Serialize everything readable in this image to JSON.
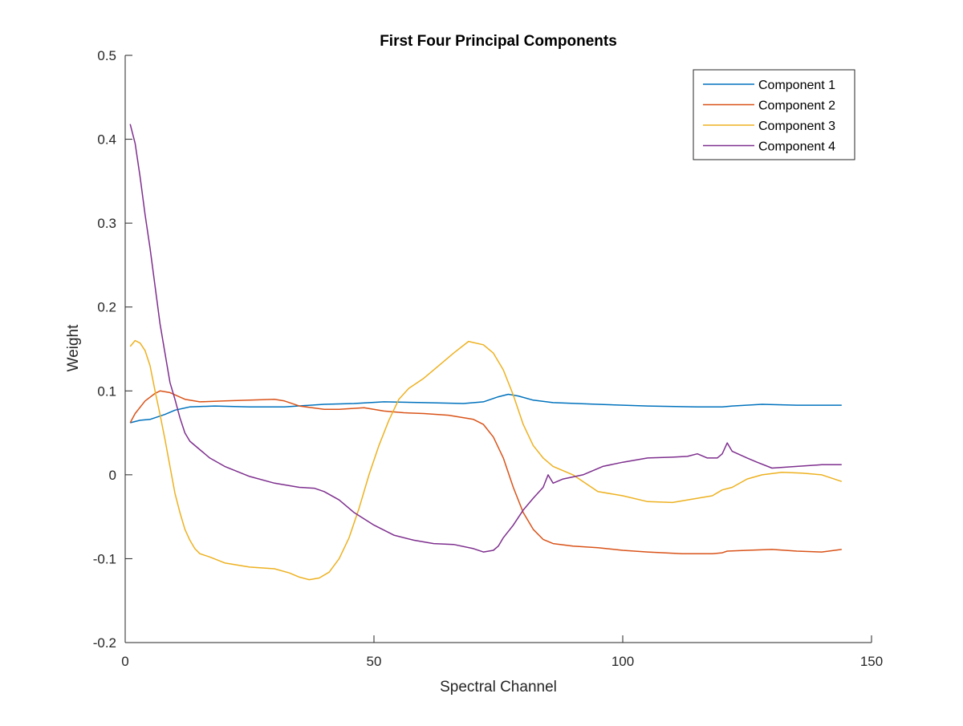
{
  "chart_data": {
    "type": "line",
    "title": "First Four Principal Components",
    "xlabel": "Spectral Channel",
    "ylabel": "Weight",
    "xlim": [
      0,
      150
    ],
    "ylim": [
      -0.2,
      0.5
    ],
    "xticks": [
      0,
      50,
      100,
      150
    ],
    "xtick_labels": [
      "0",
      "50",
      "100",
      "150"
    ],
    "yticks": [
      -0.2,
      -0.1,
      0,
      0.1,
      0.2,
      0.3,
      0.4,
      0.5
    ],
    "ytick_labels": [
      "-0.2",
      "-0.1",
      "0",
      "0.1",
      "0.2",
      "0.3",
      "0.4",
      "0.5"
    ],
    "grid": false,
    "legend_position": "top-right",
    "series": [
      {
        "name": "Component 1",
        "color": "#0072BD",
        "points": [
          [
            1,
            0.062
          ],
          [
            3,
            0.065
          ],
          [
            5,
            0.066
          ],
          [
            8,
            0.072
          ],
          [
            10,
            0.077
          ],
          [
            13,
            0.081
          ],
          [
            18,
            0.082
          ],
          [
            25,
            0.081
          ],
          [
            32,
            0.081
          ],
          [
            40,
            0.084
          ],
          [
            46,
            0.085
          ],
          [
            52,
            0.087
          ],
          [
            60,
            0.086
          ],
          [
            68,
            0.085
          ],
          [
            72,
            0.087
          ],
          [
            75,
            0.093
          ],
          [
            77,
            0.096
          ],
          [
            79,
            0.094
          ],
          [
            82,
            0.089
          ],
          [
            86,
            0.086
          ],
          [
            95,
            0.084
          ],
          [
            105,
            0.082
          ],
          [
            115,
            0.081
          ],
          [
            120,
            0.081
          ],
          [
            122,
            0.082
          ],
          [
            128,
            0.084
          ],
          [
            135,
            0.083
          ],
          [
            144,
            0.083
          ]
        ]
      },
      {
        "name": "Component 2",
        "color": "#D95319",
        "points": [
          [
            1,
            0.062
          ],
          [
            2,
            0.073
          ],
          [
            4,
            0.088
          ],
          [
            6,
            0.097
          ],
          [
            7,
            0.1
          ],
          [
            9,
            0.098
          ],
          [
            12,
            0.09
          ],
          [
            15,
            0.087
          ],
          [
            20,
            0.088
          ],
          [
            25,
            0.089
          ],
          [
            30,
            0.09
          ],
          [
            32,
            0.088
          ],
          [
            35,
            0.082
          ],
          [
            40,
            0.078
          ],
          [
            43,
            0.078
          ],
          [
            48,
            0.08
          ],
          [
            52,
            0.076
          ],
          [
            56,
            0.074
          ],
          [
            60,
            0.073
          ],
          [
            65,
            0.071
          ],
          [
            70,
            0.066
          ],
          [
            72,
            0.06
          ],
          [
            74,
            0.045
          ],
          [
            76,
            0.02
          ],
          [
            78,
            -0.015
          ],
          [
            80,
            -0.045
          ],
          [
            82,
            -0.065
          ],
          [
            84,
            -0.077
          ],
          [
            86,
            -0.082
          ],
          [
            90,
            -0.085
          ],
          [
            95,
            -0.087
          ],
          [
            100,
            -0.09
          ],
          [
            105,
            -0.092
          ],
          [
            112,
            -0.094
          ],
          [
            118,
            -0.094
          ],
          [
            120,
            -0.093
          ],
          [
            121,
            -0.091
          ],
          [
            125,
            -0.09
          ],
          [
            130,
            -0.089
          ],
          [
            135,
            -0.091
          ],
          [
            140,
            -0.092
          ],
          [
            144,
            -0.089
          ]
        ]
      },
      {
        "name": "Component 3",
        "color": "#EDB120",
        "points": [
          [
            1,
            0.153
          ],
          [
            2,
            0.16
          ],
          [
            3,
            0.157
          ],
          [
            4,
            0.148
          ],
          [
            5,
            0.13
          ],
          [
            6,
            0.1
          ],
          [
            7,
            0.072
          ],
          [
            8,
            0.042
          ],
          [
            9,
            0.01
          ],
          [
            10,
            -0.022
          ],
          [
            11,
            -0.045
          ],
          [
            12,
            -0.065
          ],
          [
            13,
            -0.078
          ],
          [
            14,
            -0.088
          ],
          [
            15,
            -0.094
          ],
          [
            17,
            -0.098
          ],
          [
            20,
            -0.105
          ],
          [
            25,
            -0.11
          ],
          [
            30,
            -0.112
          ],
          [
            33,
            -0.117
          ],
          [
            35,
            -0.122
          ],
          [
            37,
            -0.125
          ],
          [
            39,
            -0.123
          ],
          [
            41,
            -0.116
          ],
          [
            43,
            -0.1
          ],
          [
            45,
            -0.075
          ],
          [
            47,
            -0.04
          ],
          [
            49,
            0.0
          ],
          [
            51,
            0.035
          ],
          [
            53,
            0.065
          ],
          [
            55,
            0.09
          ],
          [
            57,
            0.103
          ],
          [
            60,
            0.115
          ],
          [
            63,
            0.13
          ],
          [
            66,
            0.145
          ],
          [
            69,
            0.159
          ],
          [
            72,
            0.155
          ],
          [
            74,
            0.145
          ],
          [
            76,
            0.125
          ],
          [
            78,
            0.095
          ],
          [
            80,
            0.06
          ],
          [
            82,
            0.035
          ],
          [
            84,
            0.02
          ],
          [
            86,
            0.01
          ],
          [
            90,
            0.0
          ],
          [
            95,
            -0.02
          ],
          [
            100,
            -0.025
          ],
          [
            105,
            -0.032
          ],
          [
            110,
            -0.033
          ],
          [
            115,
            -0.028
          ],
          [
            118,
            -0.025
          ],
          [
            120,
            -0.018
          ],
          [
            122,
            -0.015
          ],
          [
            125,
            -0.005
          ],
          [
            128,
            0.0
          ],
          [
            132,
            0.003
          ],
          [
            136,
            0.002
          ],
          [
            140,
            0.0
          ],
          [
            144,
            -0.008
          ]
        ]
      },
      {
        "name": "Component 4",
        "color": "#7E2F8E",
        "points": [
          [
            1,
            0.418
          ],
          [
            2,
            0.395
          ],
          [
            3,
            0.355
          ],
          [
            4,
            0.31
          ],
          [
            5,
            0.27
          ],
          [
            6,
            0.225
          ],
          [
            7,
            0.18
          ],
          [
            8,
            0.145
          ],
          [
            9,
            0.11
          ],
          [
            10,
            0.09
          ],
          [
            11,
            0.068
          ],
          [
            12,
            0.05
          ],
          [
            13,
            0.04
          ],
          [
            15,
            0.03
          ],
          [
            17,
            0.02
          ],
          [
            20,
            0.01
          ],
          [
            25,
            -0.002
          ],
          [
            30,
            -0.01
          ],
          [
            35,
            -0.015
          ],
          [
            38,
            -0.016
          ],
          [
            40,
            -0.02
          ],
          [
            43,
            -0.03
          ],
          [
            46,
            -0.045
          ],
          [
            50,
            -0.06
          ],
          [
            54,
            -0.072
          ],
          [
            58,
            -0.078
          ],
          [
            62,
            -0.082
          ],
          [
            66,
            -0.083
          ],
          [
            70,
            -0.088
          ],
          [
            72,
            -0.092
          ],
          [
            74,
            -0.09
          ],
          [
            75,
            -0.085
          ],
          [
            76,
            -0.075
          ],
          [
            78,
            -0.06
          ],
          [
            80,
            -0.042
          ],
          [
            82,
            -0.028
          ],
          [
            84,
            -0.015
          ],
          [
            85,
            0.0
          ],
          [
            86,
            -0.01
          ],
          [
            88,
            -0.005
          ],
          [
            92,
            0.0
          ],
          [
            96,
            0.01
          ],
          [
            100,
            0.015
          ],
          [
            105,
            0.02
          ],
          [
            110,
            0.021
          ],
          [
            113,
            0.022
          ],
          [
            115,
            0.025
          ],
          [
            117,
            0.02
          ],
          [
            119,
            0.02
          ],
          [
            120,
            0.025
          ],
          [
            121,
            0.038
          ],
          [
            122,
            0.028
          ],
          [
            125,
            0.02
          ],
          [
            127,
            0.015
          ],
          [
            130,
            0.008
          ],
          [
            135,
            0.01
          ],
          [
            140,
            0.012
          ],
          [
            144,
            0.012
          ]
        ]
      }
    ]
  }
}
